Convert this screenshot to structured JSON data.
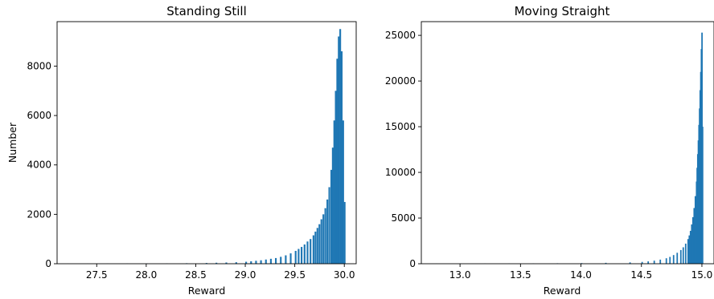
{
  "chart_data": [
    {
      "type": "bar",
      "title": "Standing Still",
      "xlabel": "Reward",
      "ylabel": "Number",
      "xlim": [
        27.1,
        30.12
      ],
      "ylim": [
        0,
        9800
      ],
      "xticks": [
        "27.5",
        "28.0",
        "28.5",
        "29.0",
        "29.5",
        "30.0"
      ],
      "yticks": [
        "0",
        "2000",
        "4000",
        "6000",
        "8000"
      ],
      "grid": false,
      "bar_color": "#1f77b4",
      "bin_width": 0.0174,
      "x": [
        27.2,
        27.4,
        27.6,
        27.8,
        28.0,
        28.2,
        28.4,
        28.6,
        28.7,
        28.8,
        28.9,
        29.0,
        29.05,
        29.1,
        29.15,
        29.2,
        29.25,
        29.3,
        29.35,
        29.4,
        29.45,
        29.5,
        29.53,
        29.56,
        29.59,
        29.62,
        29.65,
        29.68,
        29.7,
        29.72,
        29.74,
        29.76,
        29.78,
        29.8,
        29.82,
        29.84,
        29.86,
        29.875,
        29.89,
        29.905,
        29.92,
        29.935,
        29.95,
        29.965,
        29.98,
        29.995
      ],
      "values": [
        5,
        6,
        8,
        10,
        12,
        15,
        20,
        30,
        40,
        50,
        60,
        80,
        100,
        120,
        140,
        170,
        200,
        230,
        280,
        340,
        420,
        520,
        600,
        680,
        780,
        900,
        1000,
        1150,
        1300,
        1450,
        1600,
        1800,
        2000,
        2250,
        2600,
        3100,
        3800,
        4700,
        5800,
        7000,
        8300,
        9200,
        9500,
        8600,
        5800,
        2500
      ]
    },
    {
      "type": "bar",
      "title": "Moving Straight",
      "xlabel": "Reward",
      "ylabel": "",
      "xlim": [
        12.68,
        15.1
      ],
      "ylim": [
        0,
        26500
      ],
      "xticks": [
        "13.0",
        "13.5",
        "14.0",
        "14.5",
        "15.0"
      ],
      "yticks": [
        "0",
        "5000",
        "10000",
        "15000",
        "20000",
        "25000"
      ],
      "grid": false,
      "bar_color": "#1f77b4",
      "bin_width": 0.0118,
      "x": [
        12.8,
        13.0,
        13.2,
        13.4,
        13.6,
        13.8,
        14.0,
        14.2,
        14.4,
        14.5,
        14.55,
        14.6,
        14.65,
        14.7,
        14.73,
        14.76,
        14.79,
        14.82,
        14.84,
        14.86,
        14.88,
        14.89,
        14.9,
        14.91,
        14.92,
        14.93,
        14.94,
        14.95,
        14.955,
        14.96,
        14.965,
        14.97,
        14.975,
        14.98,
        14.985,
        14.99,
        14.995,
        15.0
      ],
      "values": [
        15,
        20,
        25,
        30,
        40,
        50,
        70,
        100,
        150,
        200,
        260,
        340,
        450,
        600,
        750,
        950,
        1200,
        1500,
        1800,
        2200,
        2700,
        3100,
        3600,
        4300,
        5100,
        6100,
        7400,
        9000,
        10500,
        12000,
        13500,
        15200,
        17000,
        19000,
        21000,
        23500,
        25300,
        15000
      ]
    }
  ]
}
